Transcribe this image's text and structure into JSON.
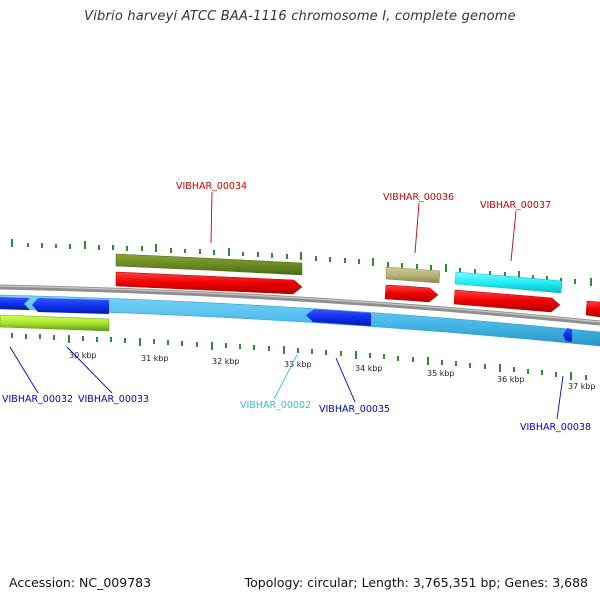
{
  "title": "Vibrio harveyi ATCC BAA-1116 chromosome I, complete genome",
  "footer": {
    "accession": "Accession: NC_009783",
    "summary": "Topology: circular; Length: 3,765,351 bp; Genes: 3,688"
  },
  "colors": {
    "backbone": "#8f8f8f",
    "label_red": "#cc0000",
    "label_blue": "#0000cc",
    "label_cyan": "#33bbdd",
    "tick": "#2e8b2e"
  },
  "scale_labels": [
    "30 kbp",
    "31 kbp",
    "32 kbp",
    "33 kbp",
    "34 kbp",
    "35 kbp",
    "36 kbp",
    "37 kbp"
  ],
  "gene_labels": {
    "top": [
      "VIBHAR_00034",
      "VIBHAR_00036",
      "VIBHAR_00037"
    ],
    "bottom_blue": [
      "VIBHAR_00032",
      "VIBHAR_00033",
      "VIBHAR_00035",
      "VIBHAR_00038"
    ],
    "bottom_cyan": [
      "VIBHAR_00002"
    ]
  }
}
